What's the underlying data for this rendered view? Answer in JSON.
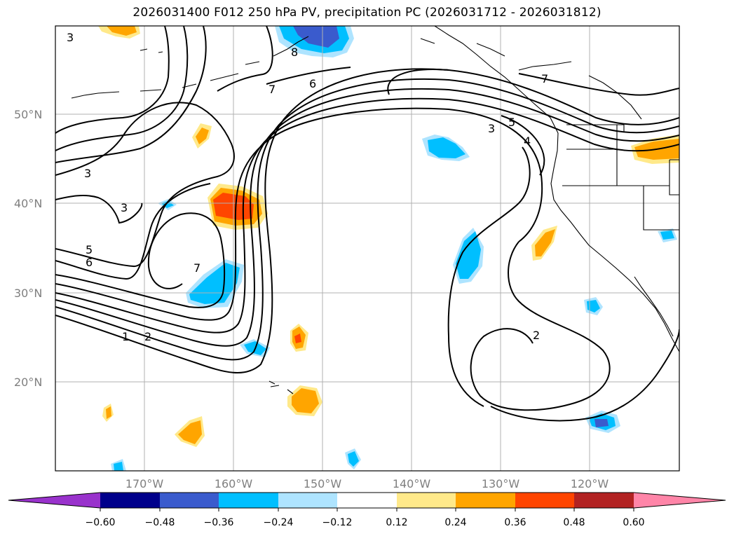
{
  "title": "2026031400 F012 250 hPa PV, precipitation PC (2026031712 - 2026031812)",
  "lat_labels": [
    "50°N",
    "40°N",
    "30°N",
    "20°N"
  ],
  "lon_labels": [
    "170°W",
    "160°W",
    "150°W",
    "140°W",
    "130°W",
    "120°W"
  ],
  "contour_labels": [
    "3",
    "7",
    "6",
    "3",
    "4",
    "5",
    "7",
    "3",
    "3",
    "5",
    "6",
    "7",
    "1",
    "2",
    "2",
    "8"
  ],
  "colorbar": {
    "ticks": [
      "−0.60",
      "−0.48",
      "−0.36",
      "−0.24",
      "−0.12",
      "0.12",
      "0.24",
      "0.36",
      "0.48",
      "0.60"
    ],
    "colors": {
      "under": "#9932cc",
      "b1": "#00008b",
      "b2": "#3a5bcd",
      "b3": "#00bfff",
      "b4": "#aee4ff",
      "b5": "#ffffff",
      "b6": "#ffe98a",
      "b7": "#ffa500",
      "b8": "#ff4500",
      "b9": "#b22222",
      "over": "#ff85a8"
    }
  }
}
